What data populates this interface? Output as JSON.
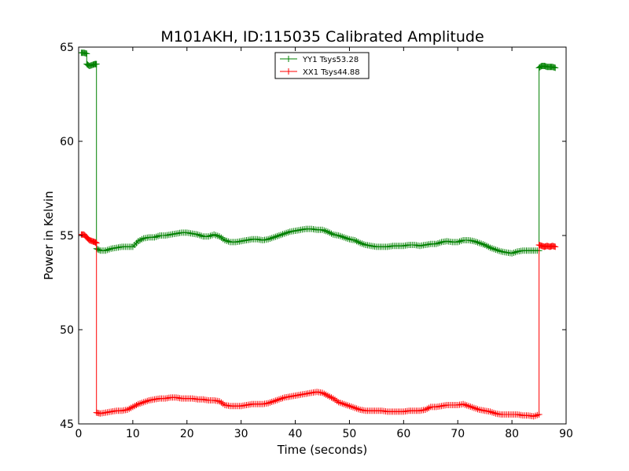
{
  "chart_data": {
    "type": "line",
    "title": "M101AKH, ID:115035 Calibrated Amplitude",
    "xlabel": "Time (seconds)",
    "ylabel": "Power in Kelvin",
    "xlim": [
      0,
      90
    ],
    "ylim": [
      45,
      65
    ],
    "xticks": [
      0,
      10,
      20,
      30,
      40,
      50,
      60,
      70,
      80,
      90
    ],
    "yticks": [
      45,
      50,
      55,
      60,
      65
    ],
    "grid": false,
    "legend_position": "top-center",
    "marker": "+",
    "series": [
      {
        "name": "YY1 Tsys53.28",
        "color": "#008000",
        "segments": [
          {
            "x": [
              0.5,
              1.0,
              1.5
            ],
            "y": [
              64.7,
              64.7,
              64.65
            ]
          },
          {
            "x": [
              1.5,
              2.0,
              2.5,
              3.0,
              3.3
            ],
            "y": [
              64.1,
              64.0,
              64.05,
              64.1,
              64.1
            ]
          },
          {
            "x": [
              3.3,
              4,
              5,
              6,
              7,
              8,
              9,
              10,
              11,
              12,
              13,
              14,
              15,
              16,
              17,
              18,
              19,
              20,
              21,
              22,
              23,
              24,
              25,
              26,
              27,
              28,
              29,
              30,
              31,
              32,
              33,
              34,
              35,
              36,
              37,
              38,
              39,
              40,
              41,
              42,
              43,
              44,
              45,
              46,
              47,
              48,
              49,
              50,
              51,
              52,
              53,
              54,
              55,
              56,
              57,
              58,
              59,
              60,
              61,
              62,
              63,
              64,
              65,
              66,
              67,
              68,
              69,
              70,
              71,
              72,
              73,
              74,
              75,
              76,
              77,
              78,
              79,
              80,
              81,
              82,
              83,
              84,
              85
            ],
            "y": [
              54.3,
              54.2,
              54.2,
              54.3,
              54.35,
              54.4,
              54.4,
              54.4,
              54.7,
              54.85,
              54.9,
              54.9,
              55.0,
              55.0,
              55.05,
              55.1,
              55.15,
              55.15,
              55.1,
              55.05,
              54.95,
              54.95,
              55.05,
              54.95,
              54.75,
              54.65,
              54.65,
              54.7,
              54.75,
              54.8,
              54.8,
              54.75,
              54.8,
              54.9,
              55.0,
              55.1,
              55.2,
              55.25,
              55.3,
              55.35,
              55.35,
              55.3,
              55.3,
              55.2,
              55.05,
              55.0,
              54.9,
              54.8,
              54.75,
              54.6,
              54.5,
              54.45,
              54.4,
              54.4,
              54.4,
              54.45,
              54.45,
              54.45,
              54.5,
              54.5,
              54.45,
              54.5,
              54.55,
              54.55,
              54.65,
              54.7,
              54.65,
              54.65,
              54.75,
              54.75,
              54.7,
              54.6,
              54.5,
              54.35,
              54.25,
              54.15,
              54.1,
              54.05,
              54.15,
              54.2,
              54.2,
              54.2,
              54.2
            ]
          },
          {
            "x": [
              85,
              85.5,
              86,
              86.5,
              87,
              87.5,
              88
            ],
            "y": [
              63.9,
              64.0,
              64.0,
              63.95,
              63.95,
              63.95,
              63.9
            ]
          }
        ]
      },
      {
        "name": "XX1 Tsys44.88",
        "color": "#ff0000",
        "segments": [
          {
            "x": [
              0.5,
              1.0,
              1.5,
              2.0,
              2.5,
              3.0,
              3.3
            ],
            "y": [
              55.05,
              55.05,
              54.9,
              54.75,
              54.7,
              54.65,
              54.6
            ]
          },
          {
            "x": [
              3.3,
              4,
              5,
              6,
              7,
              8,
              9,
              10,
              11,
              12,
              13,
              14,
              15,
              16,
              17,
              18,
              19,
              20,
              21,
              22,
              23,
              24,
              25,
              26,
              27,
              28,
              29,
              30,
              31,
              32,
              33,
              34,
              35,
              36,
              37,
              38,
              39,
              40,
              41,
              42,
              43,
              44,
              45,
              46,
              47,
              48,
              49,
              50,
              51,
              52,
              53,
              54,
              55,
              56,
              57,
              58,
              59,
              60,
              61,
              62,
              63,
              64,
              65,
              66,
              67,
              68,
              69,
              70,
              71,
              72,
              73,
              74,
              75,
              76,
              77,
              78,
              79,
              80,
              81,
              82,
              83,
              84,
              85
            ],
            "y": [
              45.6,
              45.55,
              45.6,
              45.65,
              45.7,
              45.7,
              45.75,
              45.9,
              46.05,
              46.15,
              46.25,
              46.3,
              46.35,
              46.35,
              46.4,
              46.4,
              46.35,
              46.35,
              46.35,
              46.3,
              46.3,
              46.25,
              46.25,
              46.2,
              46.0,
              45.95,
              45.95,
              45.95,
              46.0,
              46.05,
              46.05,
              46.05,
              46.1,
              46.2,
              46.3,
              46.4,
              46.45,
              46.5,
              46.55,
              46.6,
              46.65,
              46.7,
              46.65,
              46.5,
              46.35,
              46.15,
              46.05,
              45.95,
              45.85,
              45.75,
              45.7,
              45.7,
              45.7,
              45.7,
              45.65,
              45.65,
              45.65,
              45.65,
              45.7,
              45.7,
              45.7,
              45.75,
              45.9,
              45.9,
              45.95,
              46.0,
              46.0,
              46.0,
              46.05,
              45.95,
              45.85,
              45.75,
              45.7,
              45.65,
              45.55,
              45.5,
              45.5,
              45.5,
              45.5,
              45.45,
              45.45,
              45.4,
              45.5
            ]
          },
          {
            "x": [
              85,
              85.5,
              86,
              86.5,
              87,
              87.5,
              88
            ],
            "y": [
              54.5,
              54.45,
              54.4,
              54.45,
              54.4,
              54.45,
              54.4
            ]
          }
        ]
      }
    ]
  }
}
